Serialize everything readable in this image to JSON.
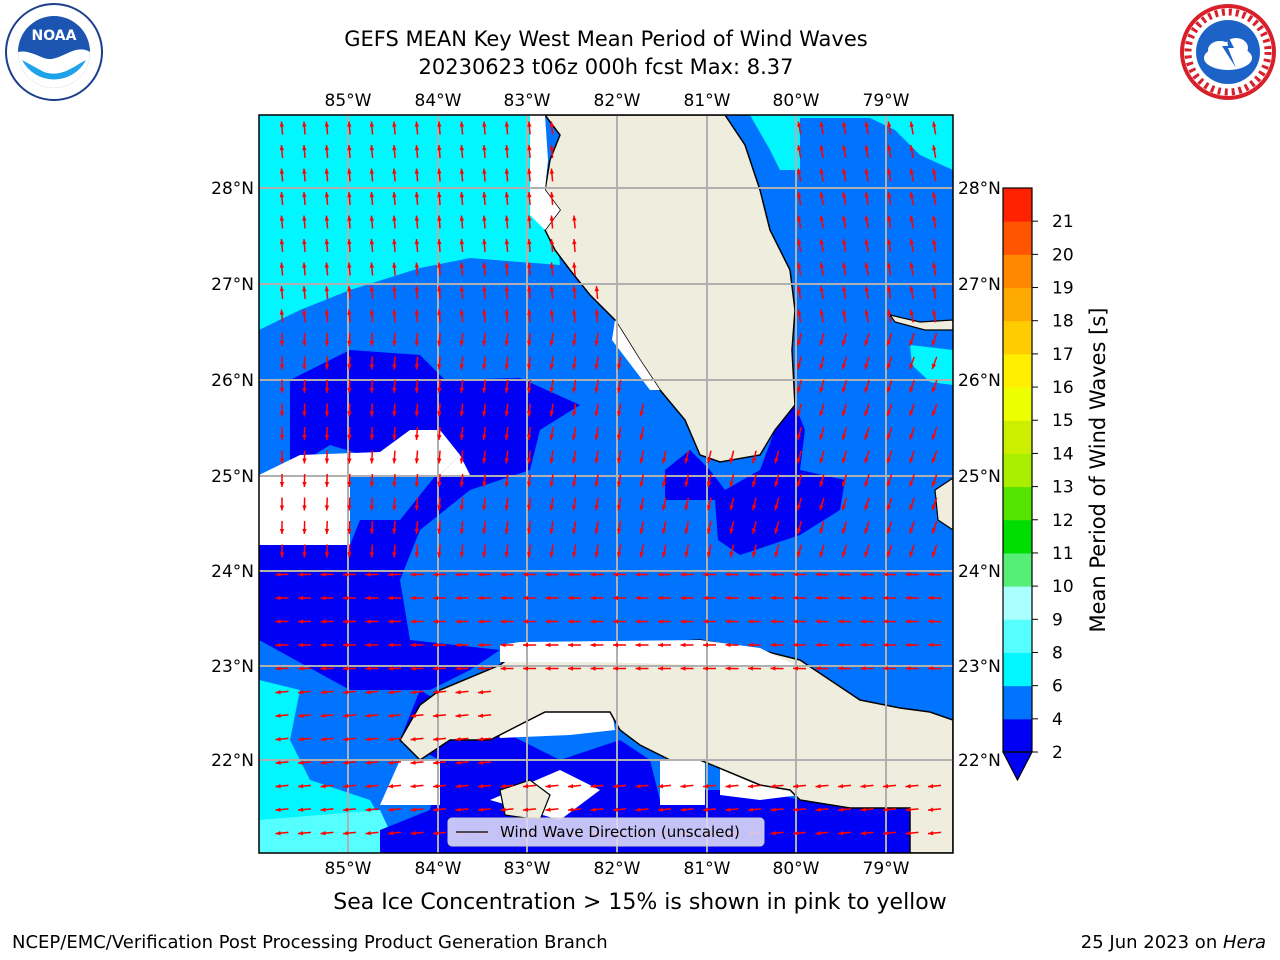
{
  "title": {
    "line1": "GEFS MEAN Key West Mean Period of Wind Waves",
    "line2": "20230623 t06z 000h fcst    Max: 8.37"
  },
  "logos": {
    "left": {
      "icon": "noaa-logo",
      "text": "NOAA"
    },
    "right": {
      "icon": "nws-logo",
      "text": "NATIONAL WEATHER SERVICE"
    }
  },
  "map": {
    "lon_labels": [
      "85°W",
      "84°W",
      "83°W",
      "82°W",
      "81°W",
      "80°W",
      "79°W"
    ],
    "lat_labels": [
      "28°N",
      "27°N",
      "26°N",
      "25°N",
      "24°N",
      "23°N",
      "22°N"
    ],
    "legend_label": "Wind Wave Direction (unscaled)",
    "arrow_color": "#ff0000",
    "land_color": "#efedde",
    "grid_color": "#b0b0b0"
  },
  "colorbar": {
    "label": "Mean Period of Wind Waves [s]",
    "ticks": [
      "2",
      "4",
      "6",
      "8",
      "9",
      "10",
      "11",
      "12",
      "13",
      "14",
      "15",
      "16",
      "17",
      "18",
      "19",
      "20",
      "21"
    ],
    "bands": [
      {
        "from": 0,
        "to": 2,
        "color": "#0000f5"
      },
      {
        "from": 2,
        "to": 4,
        "color": "#0074ff"
      },
      {
        "from": 4,
        "to": 6,
        "color": "#00f7ff"
      },
      {
        "from": 6,
        "to": 8,
        "color": "#55ffff"
      },
      {
        "from": 8,
        "to": 9,
        "color": "#aaffff"
      },
      {
        "from": 9,
        "to": 10,
        "color": "#55ee77"
      },
      {
        "from": 10,
        "to": 11,
        "color": "#00dd00"
      },
      {
        "from": 11,
        "to": 12,
        "color": "#55e400"
      },
      {
        "from": 12,
        "to": 13,
        "color": "#aaee00"
      },
      {
        "from": 13,
        "to": 14,
        "color": "#ccee00"
      },
      {
        "from": 14,
        "to": 15,
        "color": "#eeff00"
      },
      {
        "from": 15,
        "to": 16,
        "color": "#ffee00"
      },
      {
        "from": 16,
        "to": 17,
        "color": "#ffcc00"
      },
      {
        "from": 17,
        "to": 18,
        "color": "#ffaa00"
      },
      {
        "from": 18,
        "to": 19,
        "color": "#ff8800"
      },
      {
        "from": 19,
        "to": 20,
        "color": "#ff5500"
      },
      {
        "from": 20,
        "to": 21,
        "color": "#ff2200"
      }
    ]
  },
  "ice_note": "Sea Ice Concentration > 15% is shown in pink to yellow",
  "footer": {
    "left": "NCEP/EMC/Verification Post Processing Product Generation Branch",
    "date": "25 Jun 2023 on ",
    "machine": "Hera"
  }
}
